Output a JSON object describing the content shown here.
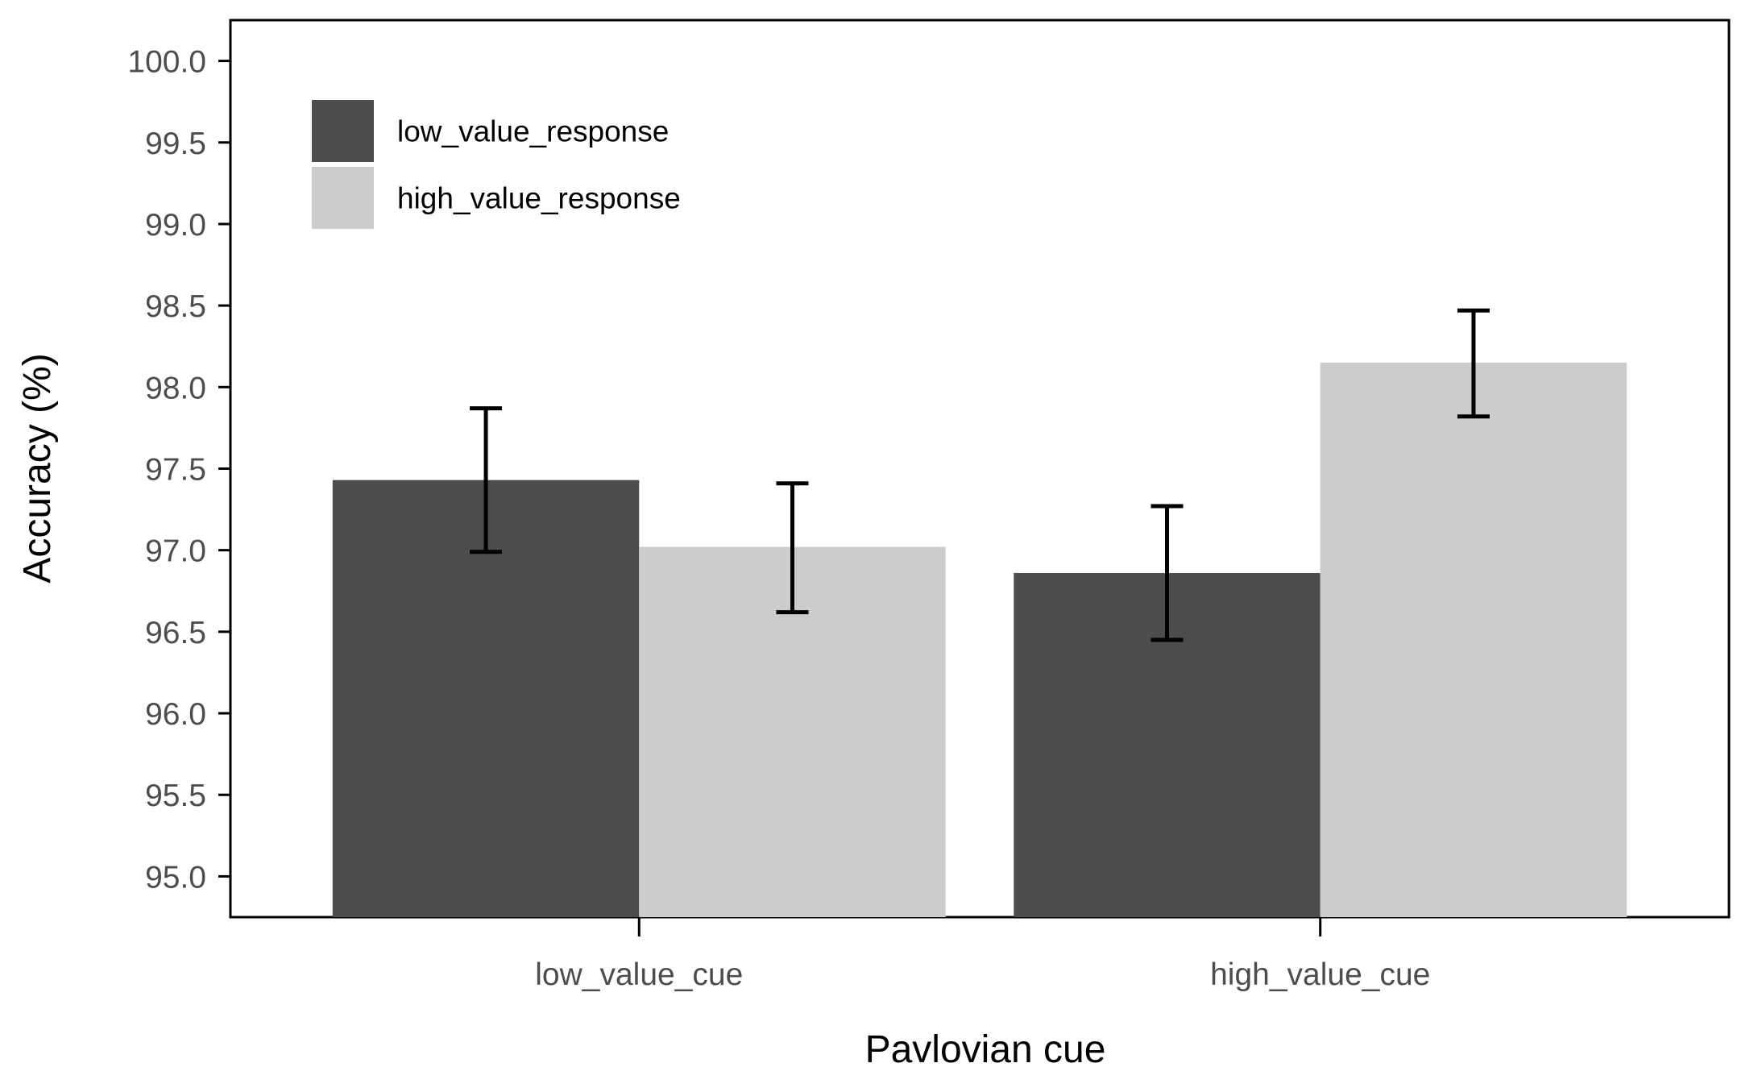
{
  "chart_data": {
    "type": "bar",
    "categories": [
      "low_value_cue",
      "high_value_cue"
    ],
    "series": [
      {
        "name": "low_value_response",
        "values": [
          97.43,
          96.86
        ],
        "error_low": [
          96.99,
          96.45
        ],
        "error_high": [
          97.87,
          97.27
        ],
        "color": "#4d4d4d"
      },
      {
        "name": "high_value_response",
        "values": [
          97.02,
          98.15
        ],
        "error_low": [
          96.62,
          97.82
        ],
        "error_high": [
          97.41,
          98.47
        ],
        "color": "#cccccc"
      }
    ],
    "title": "",
    "xlabel": "Pavlovian cue",
    "ylabel": "Accuracy (%)",
    "ylim": [
      94.75,
      100.25
    ],
    "yticks": [
      "95.0",
      "95.5",
      "96.0",
      "96.5",
      "97.0",
      "97.5",
      "98.0",
      "98.5",
      "99.0",
      "99.5",
      "100.0"
    ],
    "grid": false,
    "legend_position": "top-left"
  }
}
